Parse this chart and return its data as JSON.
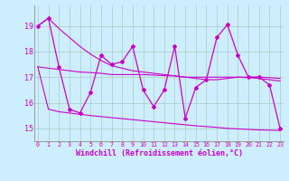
{
  "x": [
    0,
    1,
    2,
    3,
    4,
    5,
    6,
    7,
    8,
    9,
    10,
    11,
    12,
    13,
    14,
    15,
    16,
    17,
    18,
    19,
    20,
    21,
    22,
    23
  ],
  "data_zigzag": [
    19.0,
    19.3,
    17.4,
    15.75,
    15.6,
    16.4,
    17.85,
    17.5,
    17.6,
    18.2,
    16.5,
    15.85,
    16.5,
    18.2,
    15.4,
    16.6,
    16.9,
    18.55,
    19.05,
    17.85,
    17.0,
    17.0,
    16.7,
    15.0
  ],
  "trend_top": [
    19.0,
    19.3,
    18.9,
    18.55,
    18.2,
    17.9,
    17.65,
    17.45,
    17.35,
    17.25,
    17.2,
    17.15,
    17.1,
    17.05,
    17.0,
    16.95,
    16.9,
    16.9,
    16.95,
    17.0,
    17.0,
    17.0,
    16.98,
    16.95
  ],
  "trend_mid": [
    17.4,
    17.35,
    17.3,
    17.25,
    17.2,
    17.18,
    17.15,
    17.1,
    17.1,
    17.1,
    17.1,
    17.08,
    17.06,
    17.05,
    17.0,
    17.0,
    17.0,
    17.0,
    17.0,
    17.0,
    16.98,
    16.95,
    16.9,
    16.85
  ],
  "trend_bot": [
    17.4,
    15.75,
    15.65,
    15.6,
    15.55,
    15.5,
    15.46,
    15.42,
    15.38,
    15.34,
    15.3,
    15.26,
    15.22,
    15.18,
    15.14,
    15.1,
    15.07,
    15.04,
    15.0,
    14.98,
    14.96,
    14.94,
    14.93,
    14.92
  ],
  "color": "#cc00cc",
  "bg_color": "#cceeff",
  "grid_color": "#aaccbb",
  "ylim": [
    14.5,
    19.8
  ],
  "yticks": [
    15,
    16,
    17,
    18,
    19
  ],
  "xlabel": "Windchill (Refroidissement éolien,°C)"
}
